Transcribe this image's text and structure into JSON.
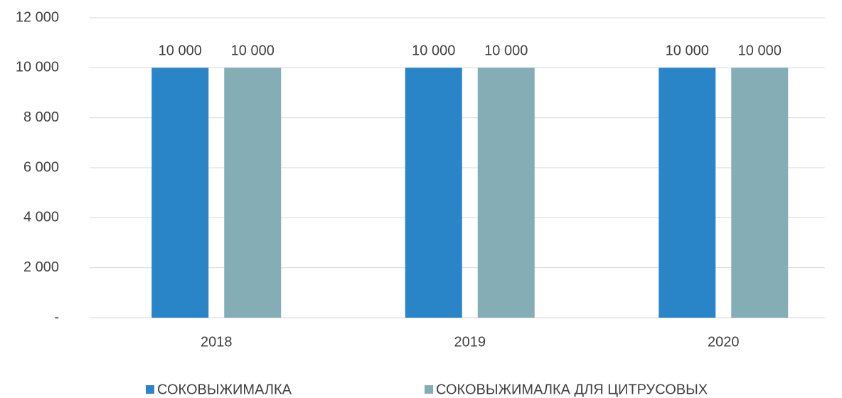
{
  "chart_data": {
    "type": "bar",
    "categories": [
      "2018",
      "2019",
      "2020"
    ],
    "series": [
      {
        "name": "СОКОВЫЖИМАЛКА",
        "color": "#2a84c8",
        "values": [
          10000,
          10000,
          10000
        ],
        "value_labels": [
          "10 000",
          "10 000",
          "10 000"
        ]
      },
      {
        "name": "СОКОВЫЖИМАЛКА ДЛЯ ЦИТРУСОВЫХ",
        "color": "#84adb6",
        "values": [
          10000,
          10000,
          10000
        ],
        "value_labels": [
          "10 000",
          "10 000",
          "10 000"
        ]
      }
    ],
    "ylim": [
      0,
      12000
    ],
    "yticks": [
      {
        "value": 0,
        "label": "-"
      },
      {
        "value": 2000,
        "label": "2 000"
      },
      {
        "value": 4000,
        "label": "4 000"
      },
      {
        "value": 6000,
        "label": "6 000"
      },
      {
        "value": 8000,
        "label": "8 000"
      },
      {
        "value": 10000,
        "label": "10 000"
      },
      {
        "value": 12000,
        "label": "12 000"
      }
    ],
    "grid": true,
    "legend": "bottom"
  }
}
